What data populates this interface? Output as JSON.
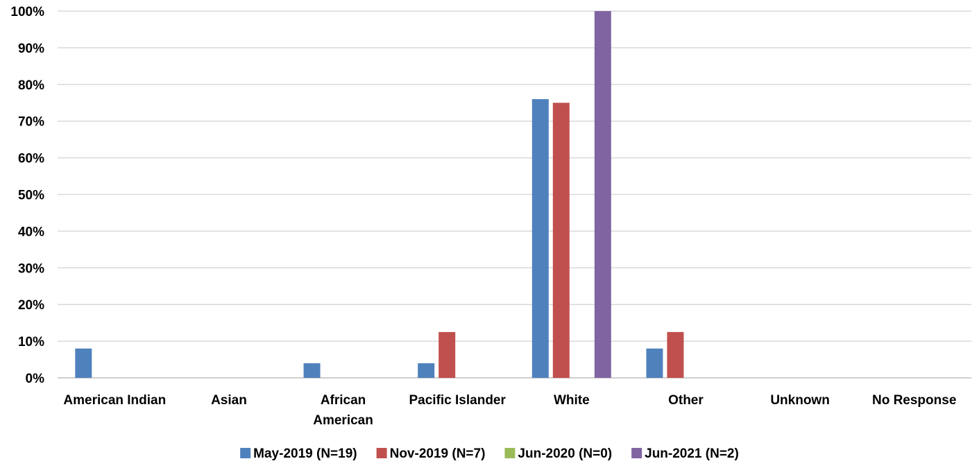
{
  "chart_data": {
    "type": "bar",
    "categories": [
      [
        "American Indian"
      ],
      [
        "Asian"
      ],
      [
        "African",
        "American"
      ],
      [
        "Pacific Islander"
      ],
      [
        "White"
      ],
      [
        "Other"
      ],
      [
        "Unknown"
      ],
      [
        "No Response"
      ]
    ],
    "series": [
      {
        "name": "May-2019 (N=19)",
        "color": "#4F81BD",
        "values": [
          8,
          0,
          4,
          4,
          76,
          8,
          0,
          0
        ]
      },
      {
        "name": "Nov-2019 (N=7)",
        "color": "#C0504D",
        "values": [
          0,
          0,
          0,
          12.5,
          75,
          12.5,
          0,
          0
        ]
      },
      {
        "name": "Jun-2020 (N=0)",
        "color": "#9BBB59",
        "values": [
          0,
          0,
          0,
          0,
          0,
          0,
          0,
          0
        ]
      },
      {
        "name": "Jun-2021 (N=2)",
        "color": "#8064A2",
        "values": [
          0,
          0,
          0,
          0,
          100,
          0,
          0,
          0
        ]
      }
    ],
    "y_ticks": [
      "0%",
      "10%",
      "20%",
      "30%",
      "40%",
      "50%",
      "60%",
      "70%",
      "80%",
      "90%",
      "100%"
    ],
    "ylim": [
      0,
      100
    ],
    "grid": true,
    "legend_position": "bottom"
  }
}
